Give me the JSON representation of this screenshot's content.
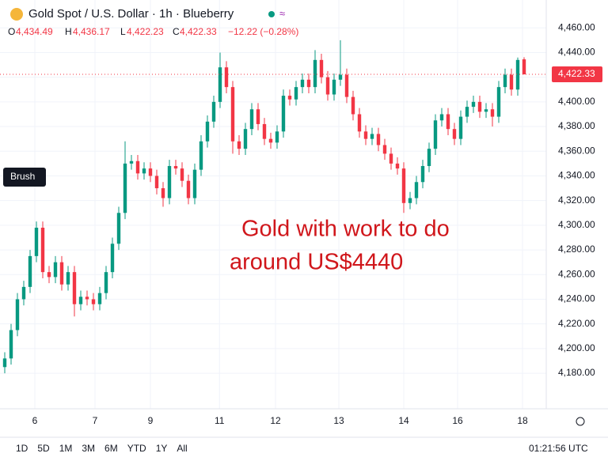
{
  "chart_data": {
    "type": "candlestick",
    "title": "Gold Spot / U.S. Dollar · 1h · Blueberry",
    "legend": {
      "o_label": "O",
      "o": "4,434.49",
      "h_label": "H",
      "h": "4,436.17",
      "l_label": "L",
      "l": "4,422.23",
      "c_label": "C",
      "c": "4,422.33",
      "change": "−12.22 (−0.28%)"
    },
    "annotations": [
      "Gold with work to do",
      "around US$4440"
    ],
    "tooltip": "Brush",
    "last_price": {
      "value": 4422.33,
      "label": "4,422.33"
    },
    "up_color": "#089981",
    "down_color": "#f23645",
    "open": [
      4185,
      4192,
      4215,
      4240,
      4250,
      4275,
      4298,
      4262,
      4258,
      4270,
      4252,
      4262,
      4236,
      4242,
      4240,
      4236,
      4245,
      4262,
      4285,
      4310,
      4350,
      4352,
      4342,
      4346,
      4340,
      4330,
      4322,
      4348,
      4346,
      4336,
      4322,
      4345,
      4368,
      4384,
      4400,
      4428,
      4412,
      4368,
      4362,
      4378,
      4394,
      4382,
      4370,
      4367,
      4376,
      4405,
      4402,
      4412,
      4418,
      4412,
      4434,
      4420,
      4406,
      4418,
      4422,
      4404,
      4390,
      4376,
      4370,
      4374,
      4365,
      4358,
      4350,
      4346,
      4318,
      4322,
      4335,
      4348,
      4362,
      4385,
      4390,
      4378,
      4370,
      4388,
      4396,
      4400,
      4392,
      4394,
      4388,
      4412,
      4422,
      4410,
      4434.49
    ],
    "high": [
      4197,
      4220,
      4245,
      4255,
      4280,
      4303,
      4303,
      4267,
      4275,
      4275,
      4267,
      4267,
      4247,
      4247,
      4245,
      4250,
      4267,
      4290,
      4315,
      4368,
      4357,
      4357,
      4351,
      4351,
      4345,
      4335,
      4353,
      4353,
      4351,
      4341,
      4350,
      4373,
      4389,
      4405,
      4440,
      4433,
      4417,
      4373,
      4383,
      4399,
      4399,
      4387,
      4375,
      4381,
      4410,
      4410,
      4417,
      4423,
      4423,
      4442,
      4439,
      4425,
      4423,
      4450,
      4427,
      4409,
      4395,
      4381,
      4379,
      4379,
      4370,
      4363,
      4355,
      4351,
      4327,
      4340,
      4353,
      4367,
      4390,
      4395,
      4395,
      4383,
      4393,
      4401,
      4405,
      4405,
      4399,
      4399,
      4417,
      4427,
      4427,
      4436,
      4436.17
    ],
    "low": [
      4180,
      4187,
      4210,
      4235,
      4245,
      4270,
      4257,
      4253,
      4253,
      4247,
      4247,
      4226,
      4231,
      4235,
      4231,
      4231,
      4240,
      4257,
      4280,
      4305,
      4345,
      4337,
      4337,
      4335,
      4325,
      4315,
      4317,
      4341,
      4331,
      4317,
      4317,
      4340,
      4363,
      4379,
      4395,
      4407,
      4358,
      4357,
      4357,
      4373,
      4377,
      4365,
      4362,
      4362,
      4371,
      4397,
      4397,
      4407,
      4407,
      4407,
      4415,
      4401,
      4401,
      4413,
      4399,
      4385,
      4371,
      4365,
      4365,
      4360,
      4353,
      4345,
      4341,
      4310,
      4313,
      4317,
      4330,
      4343,
      4357,
      4380,
      4373,
      4365,
      4365,
      4383,
      4391,
      4387,
      4387,
      4380,
      4383,
      4407,
      4405,
      4405,
      4422.23
    ],
    "close": [
      4192,
      4215,
      4240,
      4250,
      4275,
      4298,
      4262,
      4258,
      4270,
      4252,
      4262,
      4236,
      4242,
      4240,
      4236,
      4245,
      4262,
      4285,
      4310,
      4350,
      4352,
      4342,
      4346,
      4340,
      4330,
      4322,
      4348,
      4346,
      4336,
      4322,
      4345,
      4368,
      4384,
      4400,
      4428,
      4412,
      4368,
      4362,
      4378,
      4394,
      4382,
      4370,
      4367,
      4376,
      4405,
      4402,
      4412,
      4418,
      4412,
      4434,
      4420,
      4406,
      4418,
      4422,
      4404,
      4390,
      4376,
      4370,
      4374,
      4365,
      4358,
      4350,
      4346,
      4318,
      4322,
      4335,
      4348,
      4362,
      4385,
      4390,
      4378,
      4370,
      4388,
      4396,
      4400,
      4392,
      4394,
      4388,
      4412,
      4422,
      4410,
      4434,
      4422.33
    ],
    "xlim": [
      -0.75,
      85.5
    ],
    "xticks": [
      {
        "value": 4.75,
        "label": "6"
      },
      {
        "value": 14.25,
        "label": "7"
      },
      {
        "value": 23,
        "label": "9"
      },
      {
        "value": 33.9,
        "label": "11"
      },
      {
        "value": 42.75,
        "label": "12"
      },
      {
        "value": 52.75,
        "label": "13"
      },
      {
        "value": 63,
        "label": "14"
      },
      {
        "value": 71.5,
        "label": "16"
      },
      {
        "value": 81.75,
        "label": "18"
      }
    ],
    "ylim": [
      4151.2,
      4482.6
    ],
    "yticks": [
      {
        "value": 4180,
        "label": "4,180.00"
      },
      {
        "value": 4200,
        "label": "4,200.00"
      },
      {
        "value": 4220,
        "label": "4,220.00"
      },
      {
        "value": 4240,
        "label": "4,240.00"
      },
      {
        "value": 4260,
        "label": "4,260.00"
      },
      {
        "value": 4280,
        "label": "4,280.00"
      },
      {
        "value": 4300,
        "label": "4,300.00"
      },
      {
        "value": 4320,
        "label": "4,320.00"
      },
      {
        "value": 4340,
        "label": "4,340.00"
      },
      {
        "value": 4360,
        "label": "4,360.00"
      },
      {
        "value": 4380,
        "label": "4,380.00"
      },
      {
        "value": 4400,
        "label": "4,400.00"
      },
      {
        "value": 4420,
        "label": "4,420.00"
      },
      {
        "value": 4440,
        "label": "4,440.00"
      },
      {
        "value": 4460,
        "label": "4,460.00"
      }
    ],
    "grid": true,
    "ranges": [
      "1D",
      "5D",
      "1M",
      "3M",
      "6M",
      "YTD",
      "1Y",
      "All"
    ],
    "clock": "01:21:56 UTC"
  }
}
